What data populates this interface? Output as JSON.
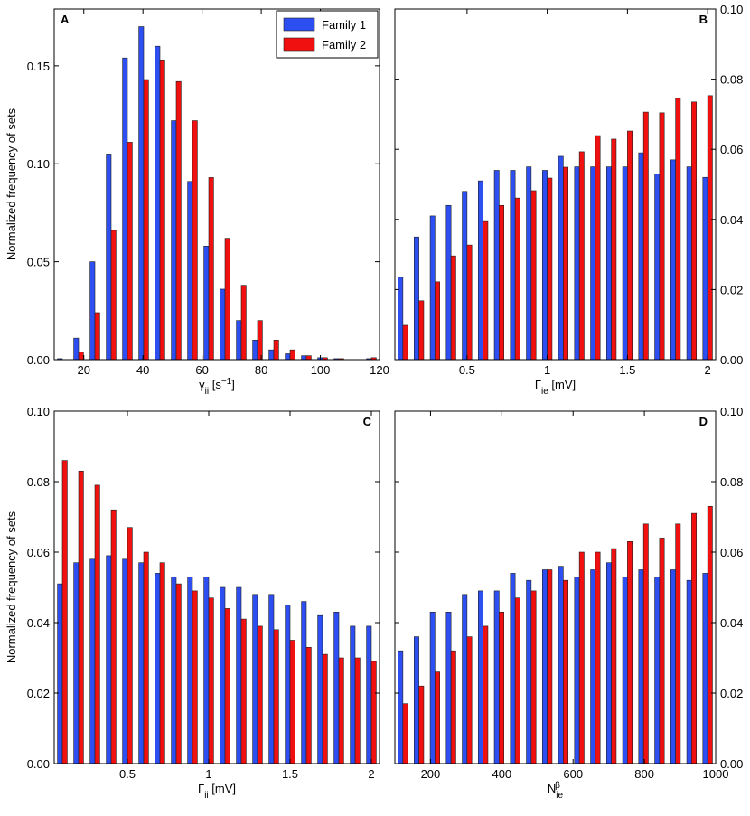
{
  "chart_data": [
    {
      "type": "bar",
      "label": "A",
      "ylabel": "Normalized frequency of sets",
      "yaxis": "left",
      "legend": "upper right",
      "xlabel_parts": [
        {
          "text": "γ"
        },
        {
          "text": "ii",
          "shift": "sub"
        },
        {
          "text": " [s"
        },
        {
          "text": "−1",
          "shift": "sup"
        },
        {
          "text": "]"
        }
      ],
      "x": [
        12.75,
        18.25,
        23.75,
        29.25,
        34.75,
        40.25,
        45.75,
        51.25,
        56.75,
        62.25,
        67.75,
        73.25,
        78.75,
        84.25,
        89.75,
        95.25,
        100.75,
        106.25,
        111.75,
        117.25
      ],
      "series": [
        {
          "name": "Family 1",
          "color": "#2d4ef0",
          "values": [
            0.0005,
            0.011,
            0.05,
            0.105,
            0.154,
            0.17,
            0.16,
            0.122,
            0.091,
            0.058,
            0.036,
            0.02,
            0.01,
            0.005,
            0.003,
            0.002,
            0.001,
            0.0005,
            0,
            0.0005
          ]
        },
        {
          "name": "Family 2",
          "color": "#f01010",
          "values": [
            0,
            0.004,
            0.024,
            0.066,
            0.111,
            0.143,
            0.153,
            0.142,
            0.122,
            0.093,
            0.062,
            0.038,
            0.02,
            0.01,
            0.005,
            0.002,
            0.001,
            0.0005,
            0,
            0.001
          ]
        }
      ],
      "xlim": [
        10,
        120
      ],
      "xticks": [
        20,
        40,
        60,
        80,
        100,
        120
      ],
      "ylim": [
        0,
        0.179
      ],
      "yticks": [
        {
          "value": 0,
          "label": "0.00"
        },
        {
          "value": 0.05,
          "label": "0.05"
        },
        {
          "value": 0.1,
          "label": "0.10"
        },
        {
          "value": 0.15,
          "label": "0.15"
        }
      ]
    },
    {
      "type": "bar",
      "label": "B",
      "yaxis": "right",
      "xlabel_parts": [
        {
          "text": "Γ"
        },
        {
          "text": "ie",
          "shift": "sub"
        },
        {
          "text": " [mV]"
        }
      ],
      "x": [
        0.1,
        0.2,
        0.3,
        0.4,
        0.5,
        0.6,
        0.7,
        0.8,
        0.9,
        1.0,
        1.1,
        1.2,
        1.3,
        1.4,
        1.5,
        1.6,
        1.7,
        1.8,
        1.9,
        2.0
      ],
      "series": [
        {
          "color": "#2d4ef0",
          "values": [
            0.0235,
            0.035,
            0.041,
            0.044,
            0.048,
            0.051,
            0.054,
            0.054,
            0.055,
            0.054,
            0.058,
            0.055,
            0.055,
            0.055,
            0.055,
            0.059,
            0.053,
            0.057,
            0.055,
            0.052
          ]
        },
        {
          "color": "#f01010",
          "values": [
            0.0098,
            0.0168,
            0.0222,
            0.0296,
            0.0327,
            0.0394,
            0.044,
            0.0461,
            0.0482,
            0.0518,
            0.0549,
            0.0593,
            0.0639,
            0.0629,
            0.0652,
            0.0706,
            0.0704,
            0.0745,
            0.0735,
            0.0753
          ]
        }
      ],
      "xlim": [
        0.05,
        2.05
      ],
      "xticks": [
        0.5,
        1,
        1.5,
        2
      ],
      "ylim": [
        0,
        0.1
      ],
      "yticks": [
        {
          "value": 0,
          "label": "0.00"
        },
        {
          "value": 0.02,
          "label": "0.02"
        },
        {
          "value": 0.04,
          "label": "0.04"
        },
        {
          "value": 0.06,
          "label": "0.06"
        },
        {
          "value": 0.08,
          "label": "0.08"
        },
        {
          "value": 0.1,
          "label": "0.10"
        }
      ]
    },
    {
      "type": "bar",
      "label": "C",
      "ylabel": "Normalized frequency of sets",
      "yaxis": "left",
      "xlabel_parts": [
        {
          "text": "Γ"
        },
        {
          "text": "ii",
          "shift": "sub"
        },
        {
          "text": " [mV]"
        }
      ],
      "x": [
        0.1,
        0.2,
        0.3,
        0.4,
        0.5,
        0.6,
        0.7,
        0.8,
        0.9,
        1.0,
        1.1,
        1.2,
        1.3,
        1.4,
        1.5,
        1.6,
        1.7,
        1.8,
        1.9,
        2.0
      ],
      "series": [
        {
          "color": "#2d4ef0",
          "values": [
            0.051,
            0.057,
            0.058,
            0.059,
            0.058,
            0.057,
            0.054,
            0.053,
            0.053,
            0.053,
            0.05,
            0.05,
            0.048,
            0.048,
            0.045,
            0.046,
            0.042,
            0.043,
            0.039,
            0.039
          ]
        },
        {
          "color": "#f01010",
          "values": [
            0.086,
            0.083,
            0.079,
            0.072,
            0.067,
            0.06,
            0.057,
            0.051,
            0.049,
            0.047,
            0.044,
            0.041,
            0.039,
            0.038,
            0.035,
            0.033,
            0.031,
            0.03,
            0.03,
            0.029
          ]
        }
      ],
      "xlim": [
        0.05,
        2.05
      ],
      "xticks": [
        0.5,
        1,
        1.5,
        2
      ],
      "ylim": [
        0,
        0.1
      ],
      "yticks": [
        {
          "value": 0,
          "label": "0.00"
        },
        {
          "value": 0.02,
          "label": "0.02"
        },
        {
          "value": 0.04,
          "label": "0.04"
        },
        {
          "value": 0.06,
          "label": "0.06"
        },
        {
          "value": 0.08,
          "label": "0.08"
        },
        {
          "value": 0.1,
          "label": "0.10"
        }
      ]
    },
    {
      "type": "bar",
      "label": "D",
      "yaxis": "right",
      "xlabel_parts": [
        {
          "text": "N"
        },
        {
          "text": "ie",
          "shift": "sub"
        },
        {
          "text": "β",
          "shift": "sup"
        }
      ],
      "x": [
        122.5,
        167.5,
        212.5,
        257.5,
        302.5,
        347.5,
        392.5,
        437.5,
        482.5,
        527.5,
        572.5,
        617.5,
        662.5,
        707.5,
        752.5,
        797.5,
        842.5,
        887.5,
        932.5,
        977.5
      ],
      "series": [
        {
          "color": "#2d4ef0",
          "values": [
            0.032,
            0.036,
            0.043,
            0.043,
            0.048,
            0.049,
            0.049,
            0.054,
            0.052,
            0.055,
            0.056,
            0.053,
            0.055,
            0.057,
            0.053,
            0.055,
            0.053,
            0.055,
            0.052,
            0.054
          ]
        },
        {
          "color": "#f01010",
          "values": [
            0.017,
            0.022,
            0.026,
            0.032,
            0.036,
            0.039,
            0.043,
            0.047,
            0.049,
            0.055,
            0.052,
            0.06,
            0.06,
            0.061,
            0.063,
            0.068,
            0.064,
            0.068,
            0.071,
            0.073
          ]
        }
      ],
      "xlim": [
        100,
        1000
      ],
      "xticks": [
        200,
        400,
        600,
        800,
        1000
      ],
      "ylim": [
        0,
        0.1
      ],
      "yticks": [
        {
          "value": 0,
          "label": "0.00"
        },
        {
          "value": 0.02,
          "label": "0.02"
        },
        {
          "value": 0.04,
          "label": "0.04"
        },
        {
          "value": 0.06,
          "label": "0.06"
        },
        {
          "value": 0.08,
          "label": "0.08"
        },
        {
          "value": 0.1,
          "label": "0.10"
        }
      ]
    }
  ]
}
